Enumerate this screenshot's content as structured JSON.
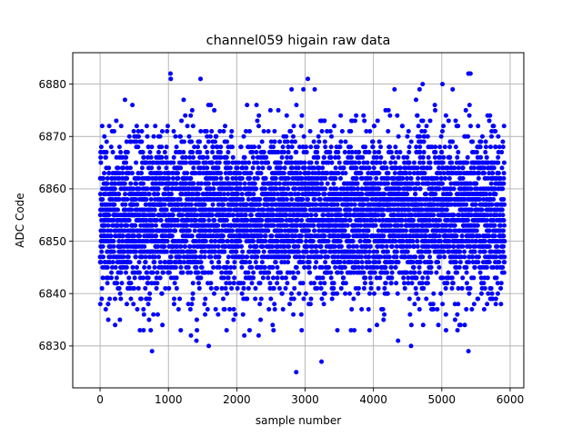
{
  "chart_data": {
    "type": "scatter",
    "title": "channel059 higain raw data",
    "xlabel": "sample number",
    "ylabel": "ADC Code",
    "xlim": [
      -400,
      6200
    ],
    "ylim": [
      6822,
      6886
    ],
    "xticks": [
      0,
      1000,
      2000,
      3000,
      4000,
      5000,
      6000
    ],
    "yticks": [
      6830,
      6840,
      6850,
      6860,
      6870,
      6880
    ],
    "grid": true,
    "marker_color": "#0000ff",
    "series": [
      {
        "n_samples": 5920,
        "x_start": 0,
        "x_step": 1,
        "baseline_mean": 6855,
        "noise_std": 7.5,
        "outliers": [
          {
            "x": 1030,
            "y": 6882
          },
          {
            "x": 1035,
            "y": 6881
          },
          {
            "x": 1470,
            "y": 6881
          },
          {
            "x": 3040,
            "y": 6881
          },
          {
            "x": 5390,
            "y": 6882
          },
          {
            "x": 5420,
            "y": 6882
          },
          {
            "x": 4720,
            "y": 6880
          },
          {
            "x": 5010,
            "y": 6880
          },
          {
            "x": 2870,
            "y": 6825
          },
          {
            "x": 3240,
            "y": 6827
          },
          {
            "x": 760,
            "y": 6829
          },
          {
            "x": 1590,
            "y": 6830
          },
          {
            "x": 4550,
            "y": 6830
          },
          {
            "x": 4360,
            "y": 6831
          },
          {
            "x": 1330,
            "y": 6832
          },
          {
            "x": 2110,
            "y": 6832
          },
          {
            "x": 2320,
            "y": 6832
          },
          {
            "x": 5390,
            "y": 6829
          },
          {
            "x": 5230,
            "y": 6833
          },
          {
            "x": 1180,
            "y": 6833
          },
          {
            "x": 1410,
            "y": 6831
          },
          {
            "x": 220,
            "y": 6834
          },
          {
            "x": 4950,
            "y": 6834
          },
          {
            "x": 5060,
            "y": 6836
          },
          {
            "x": 120,
            "y": 6835
          },
          {
            "x": 1980,
            "y": 6836
          }
        ]
      }
    ]
  }
}
